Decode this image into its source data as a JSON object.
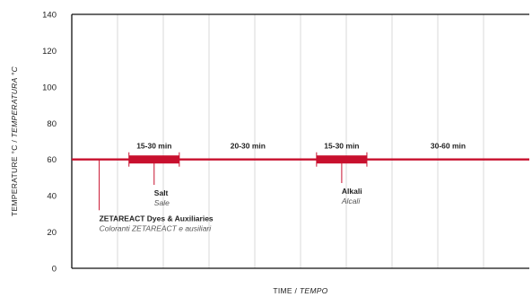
{
  "chart_data": {
    "type": "line",
    "xlabel": {
      "main": "TIME / ",
      "italic": "TEMPO"
    },
    "ylabel": {
      "main": "TEMPERATURE °C / ",
      "italic": "TEMPERATURA °C"
    },
    "ylim": [
      0,
      140
    ],
    "yticks": [
      0,
      20,
      40,
      60,
      80,
      100,
      120,
      140
    ],
    "grid": "vertical",
    "grid_count": 10,
    "accent_color": "#c8102e",
    "line": {
      "y": 60,
      "x_start": 0,
      "x_end": 10
    },
    "segments": [
      {
        "label": "15-30 min",
        "x_start": 1.25,
        "x_end": 2.35,
        "thick": true
      },
      {
        "label": "20-30 min",
        "x_start": 2.35,
        "x_end": 5.35,
        "thick": false
      },
      {
        "label": "15-30 min",
        "x_start": 5.35,
        "x_end": 6.45,
        "thick": true
      },
      {
        "label": "30-60 min",
        "x_start": 6.45,
        "x_end": 10,
        "thick": false
      }
    ],
    "annotations": [
      {
        "x": 0.6,
        "y_end": 32,
        "title": "ZETAREACT Dyes & Auxiliaries",
        "subtitle": "Coloranti ZETAREACT e ausiliari"
      },
      {
        "x": 1.8,
        "y_end": 46,
        "title": "Salt",
        "subtitle": "Sale"
      },
      {
        "x": 5.9,
        "y_end": 47,
        "title": "Alkali",
        "subtitle": "Alcali"
      }
    ]
  }
}
